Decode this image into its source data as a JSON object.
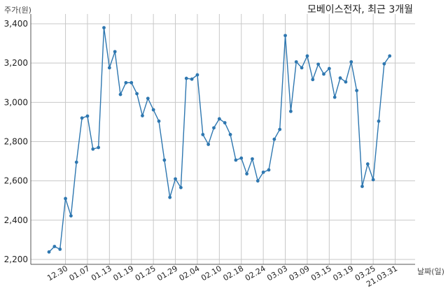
{
  "chart_data": {
    "type": "line",
    "title": "모베이스전자, 최근 3개월",
    "ylabel": "주가(원)",
    "xlabel": "날짜(일)",
    "ylim": [
      2200,
      3400
    ],
    "yticks": [
      2200,
      2400,
      2600,
      2800,
      3000,
      3200,
      3400
    ],
    "ytick_labels": [
      "2,200",
      "2,400",
      "2,600",
      "2,800",
      "3,000",
      "3,200",
      "3,400"
    ],
    "xtick_labels": [
      "12.30",
      "01.07",
      "01.13",
      "01.19",
      "01.25",
      "01.29",
      "02.04",
      "02.10",
      "02.18",
      "02.24",
      "03.03",
      "03.09",
      "03.15",
      "03.19",
      "03.25",
      "21.03.31"
    ],
    "xtick_positions": [
      3,
      7,
      11,
      15,
      19,
      23,
      27,
      31,
      35,
      39,
      43,
      47,
      51,
      55,
      59,
      63
    ],
    "grid": true,
    "color": "#2e77b0",
    "series": [
      {
        "values": [
          2238,
          2266,
          2252,
          2510,
          2422,
          2695,
          2920,
          2930,
          2762,
          2770,
          3380,
          3176,
          3258,
          3040,
          3100,
          3100,
          3044,
          2932,
          3020,
          2962,
          2904,
          2706,
          2516,
          2610,
          2566,
          3122,
          3118,
          3140,
          2836,
          2786,
          2870,
          2916,
          2896,
          2836,
          2706,
          2716,
          2636,
          2712,
          2600,
          2644,
          2656,
          2812,
          2862,
          3340,
          2954,
          3206,
          3176,
          3236,
          3116,
          3194,
          3144,
          3172,
          3026,
          3124,
          3104,
          3206,
          3060,
          2572,
          2686,
          2606,
          2904,
          3196,
          3236
        ]
      }
    ]
  }
}
